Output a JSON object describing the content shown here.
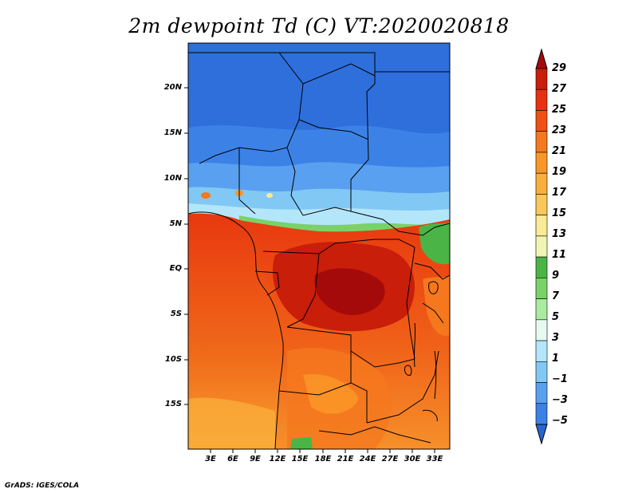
{
  "title": "2m dewpoint Td (C) VT:2020020818",
  "footer": "GrADS: IGES/COLA",
  "map": {
    "region": "Central Africa",
    "variable": "2m dewpoint",
    "units": "C",
    "valid_time": "2020020818",
    "lat_range": [
      -20,
      25
    ],
    "lon_range": [
      0,
      35
    ],
    "lat_ticks": [
      "20N",
      "15N",
      "10N",
      "5N",
      "EQ",
      "5S",
      "10S",
      "15S"
    ],
    "lon_ticks": [
      "3E",
      "6E",
      "9E",
      "12E",
      "15E",
      "18E",
      "21E",
      "24E",
      "27E",
      "30E",
      "33E"
    ]
  },
  "colorbar": {
    "labels": [
      "29",
      "27",
      "25",
      "23",
      "21",
      "19",
      "17",
      "15",
      "13",
      "11",
      "9",
      "7",
      "5",
      "3",
      "1",
      "−1",
      "−3",
      "−5"
    ],
    "colors": [
      "#a50a0a",
      "#c81e0a",
      "#e6320f",
      "#f05014",
      "#f5781e",
      "#fa9628",
      "#faaf3c",
      "#fac85a",
      "#faeb96",
      "#f0f5b4",
      "#4bb446",
      "#78d269",
      "#aaeba0",
      "#e6faf0",
      "#b4e6fa",
      "#82c8f5",
      "#5aa0f0",
      "#3c82e6",
      "#2864d2"
    ]
  }
}
